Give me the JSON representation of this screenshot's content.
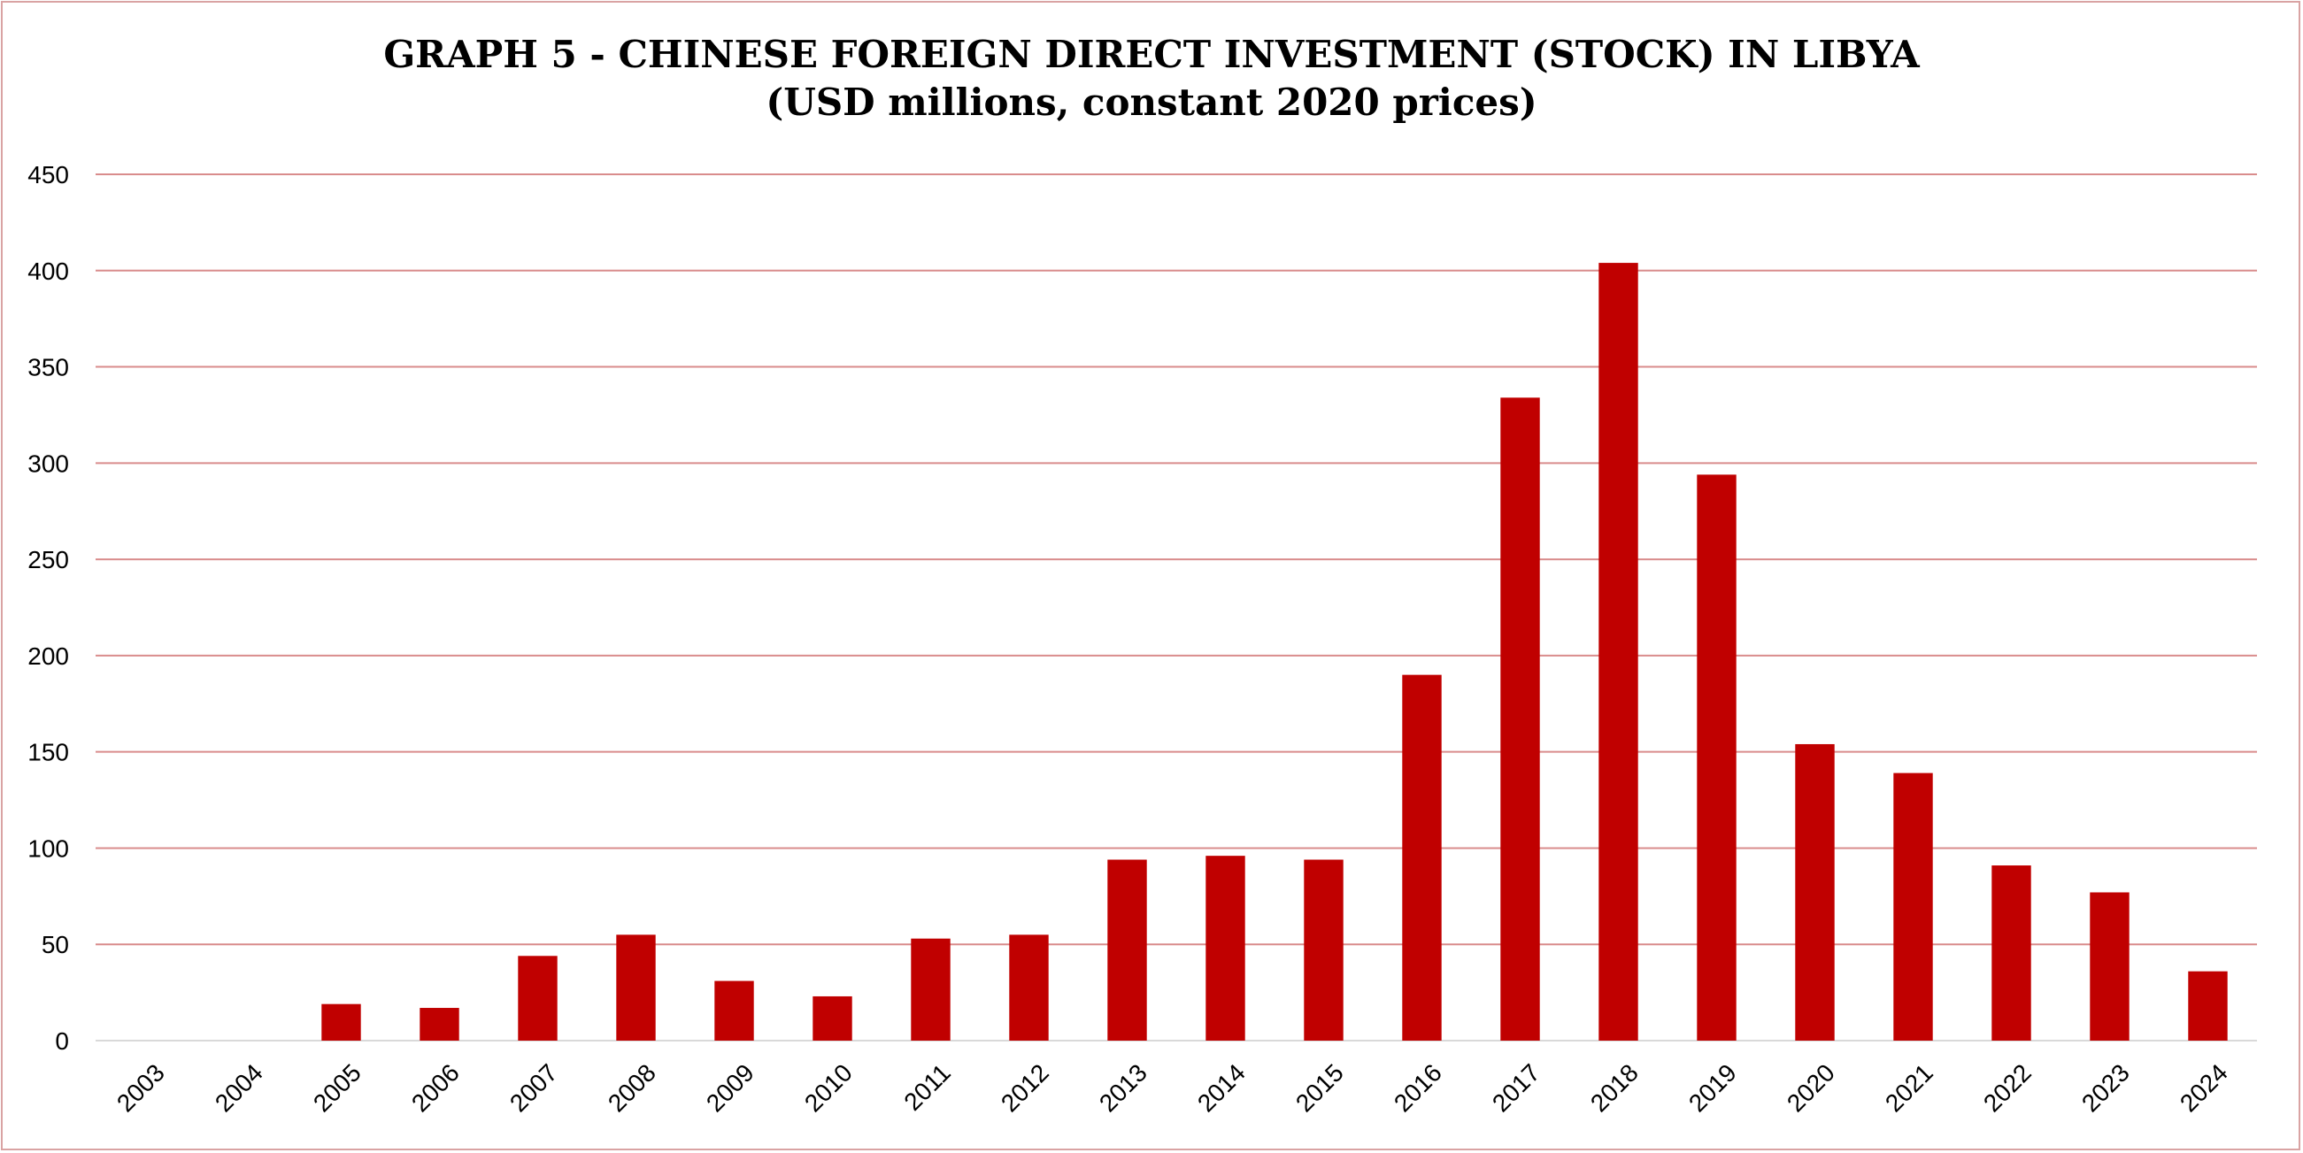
{
  "chart_data": {
    "type": "bar",
    "title": "GRAPH 5 - CHINESE FOREIGN DIRECT INVESTMENT (STOCK) IN LIBYA",
    "subtitle": "(USD millions, constant 2020 prices)",
    "xlabel": "",
    "ylabel": "",
    "ylim": [
      0,
      450
    ],
    "yticks": [
      "0",
      "50",
      "100",
      "150",
      "200",
      "250",
      "300",
      "350",
      "400",
      "450"
    ],
    "grid": true,
    "legend": "none",
    "categories": [
      "2003",
      "2004",
      "2005",
      "2006",
      "2007",
      "2008",
      "2009",
      "2010",
      "2011",
      "2012",
      "2013",
      "2014",
      "2015",
      "2016",
      "2017",
      "2018",
      "2019",
      "2020",
      "2021",
      "2022",
      "2023",
      "2024"
    ],
    "values": [
      0,
      0,
      19,
      17,
      44,
      55,
      31,
      23,
      53,
      55,
      94,
      96,
      94,
      190,
      334,
      404,
      294,
      154,
      139,
      91,
      77,
      36
    ],
    "colors": {
      "bar": "#c00000",
      "grid": "#d98c8c",
      "frame": "#d9a3a3"
    }
  }
}
